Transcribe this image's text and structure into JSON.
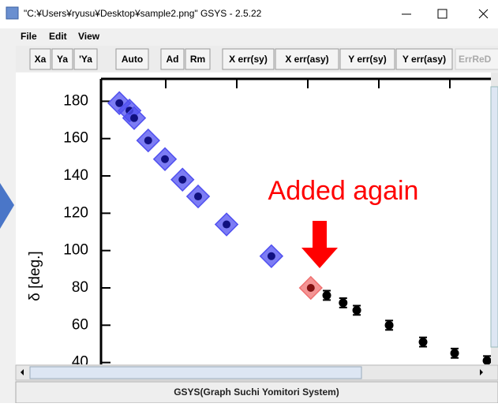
{
  "window": {
    "title": "\"C:¥Users¥ryusu¥Desktop¥sample2.png\" GSYS - 2.5.22"
  },
  "menu": [
    "File",
    "Edit",
    "View"
  ],
  "toolbar": [
    "Xa",
    "Ya",
    "'Ya",
    "Auto",
    "Ad",
    "Rm",
    "X err(sy)",
    "X err(asy)",
    "Y err(sy)",
    "Y err(asy)",
    "ErrReD"
  ],
  "chart_data": {
    "type": "scatter",
    "ylabel": "δ [deg.]",
    "annotation": "Added again",
    "xlim": [
      0,
      100
    ],
    "ylim": [
      39,
      192
    ],
    "yticks": [
      40,
      60,
      80,
      100,
      120,
      140,
      160,
      180
    ],
    "series": [
      {
        "color": "#5050f0",
        "marker": "diamond",
        "x": [
          4.7,
          7.3,
          8.5,
          12.1,
          16.4,
          20.9,
          24.9,
          32.2,
          43.7
        ],
        "values": [
          179,
          175,
          171,
          159,
          149,
          138,
          129,
          114,
          97
        ]
      },
      {
        "color": "#f07070",
        "marker": "diamond",
        "x": [
          53.8
        ],
        "values": [
          80
        ]
      },
      {
        "color": "#000000",
        "marker": "dot",
        "x": [
          57.9,
          62.1,
          65.6,
          73.9,
          82.6,
          90.7,
          99.0
        ],
        "values": [
          76,
          72,
          68,
          60,
          51,
          45,
          41
        ],
        "errors": [
          2.5,
          2.5,
          2.5,
          2.5,
          2.5,
          2.5,
          2.5
        ]
      }
    ]
  },
  "status": "GSYS(Graph Suchi Yomitori System)"
}
